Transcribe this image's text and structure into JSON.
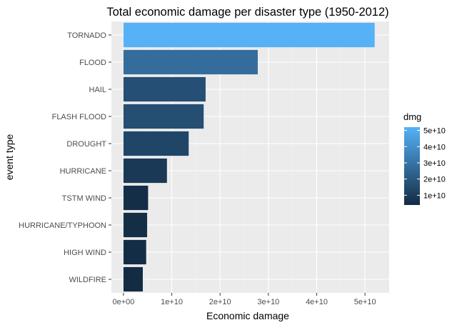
{
  "chart_data": {
    "type": "bar",
    "orientation": "horizontal",
    "title": "Total economic damage per disaster type (1950-2012)",
    "xlabel": "Economic damage",
    "ylabel": "event type",
    "categories": [
      "TORNADO",
      "FLOOD",
      "HAIL",
      "FLASH FLOOD",
      "DROUGHT",
      "HURRICANE",
      "TSTM WIND",
      "HURRICANE/TYPHOON",
      "HIGH WIND",
      "WILDFIRE"
    ],
    "values": [
      52000000000,
      27800000000,
      17000000000,
      16600000000,
      13500000000,
      9000000000,
      5100000000,
      4900000000,
      4700000000,
      4000000000
    ],
    "xlim": [
      -2500000000,
      55000000000
    ],
    "x_ticks": [
      0,
      10000000000,
      20000000000,
      30000000000,
      40000000000,
      50000000000
    ],
    "x_tick_labels": [
      "0e+00",
      "1e+10",
      "2e+10",
      "3e+10",
      "4e+10",
      "5e+10"
    ],
    "grid": true,
    "legend": {
      "title": "dmg",
      "position": "right",
      "type": "colorbar",
      "range": [
        4000000000,
        52000000000
      ],
      "ticks": [
        10000000000,
        20000000000,
        30000000000,
        40000000000,
        50000000000
      ],
      "tick_labels": [
        "1e+10",
        "2e+10",
        "3e+10",
        "4e+10",
        "5e+10"
      ]
    },
    "colors": {
      "low": "#132B43",
      "high": "#56B1F7",
      "panel": "#EBEBEB",
      "grid_major": "#FFFFFF",
      "grid_minor": "#F2F2F2",
      "text": "#000000",
      "axis_text": "#4D4D4D",
      "tick": "#333333"
    }
  }
}
